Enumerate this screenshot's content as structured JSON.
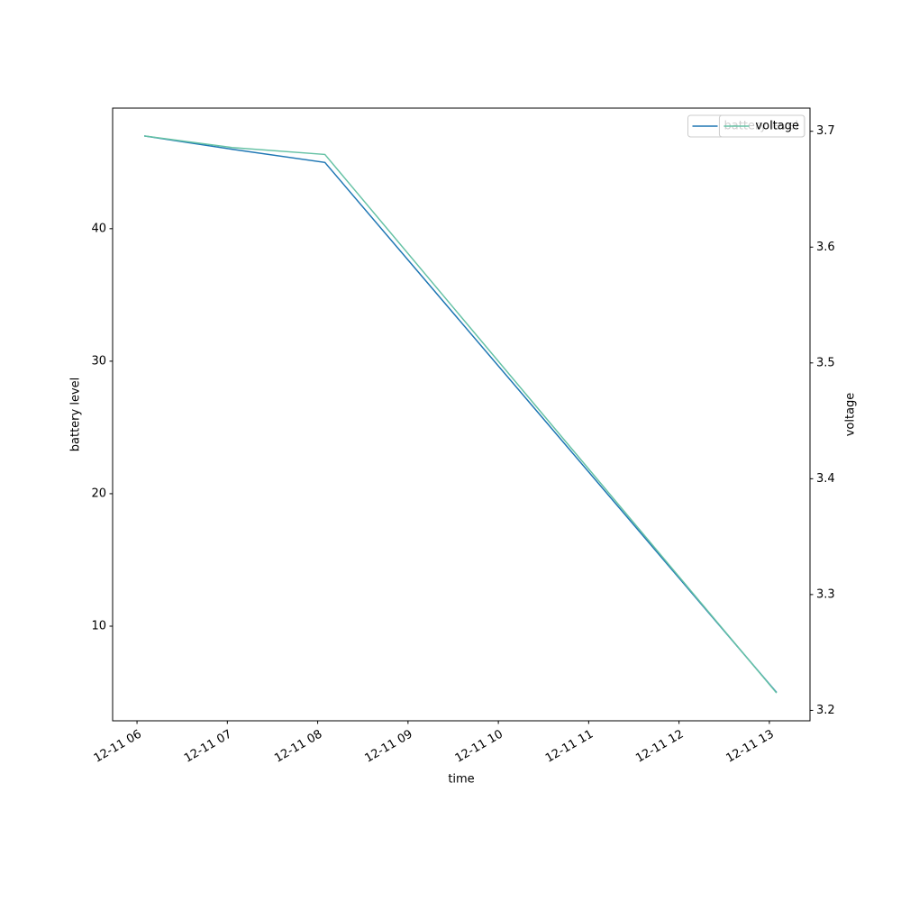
{
  "chart_data": {
    "type": "line",
    "xlabel": "time",
    "ylabel": "battery level",
    "y2label": "voltage",
    "x": [
      6.08,
      7.05,
      8.08,
      13.08
    ],
    "series": [
      {
        "name": "battery level",
        "color": "#1f77b4",
        "values": [
          47,
          46,
          45,
          5
        ],
        "axis": "y"
      },
      {
        "name": "voltage",
        "color": "#66c2a5",
        "values": [
          3.696,
          3.686,
          3.68,
          3.215
        ],
        "axis": "y2"
      }
    ],
    "xlim": [
      5.73,
      13.45
    ],
    "xticks": [
      {
        "value": 6,
        "label": "12-11 06"
      },
      {
        "value": 7,
        "label": "12-11 07"
      },
      {
        "value": 8,
        "label": "12-11 08"
      },
      {
        "value": 9,
        "label": "12-11 09"
      },
      {
        "value": 10,
        "label": "12-11 10"
      },
      {
        "value": 11,
        "label": "12-11 11"
      },
      {
        "value": 12,
        "label": "12-11 12"
      },
      {
        "value": 13,
        "label": "12-11 13"
      }
    ],
    "ylim": [
      2.86,
      49.1
    ],
    "yticks": [
      10,
      20,
      30,
      40
    ],
    "y2lim": [
      3.191,
      3.72
    ],
    "y2ticks": [
      3.2,
      3.3,
      3.4,
      3.5,
      3.6,
      3.7
    ],
    "legend": "upper right"
  }
}
